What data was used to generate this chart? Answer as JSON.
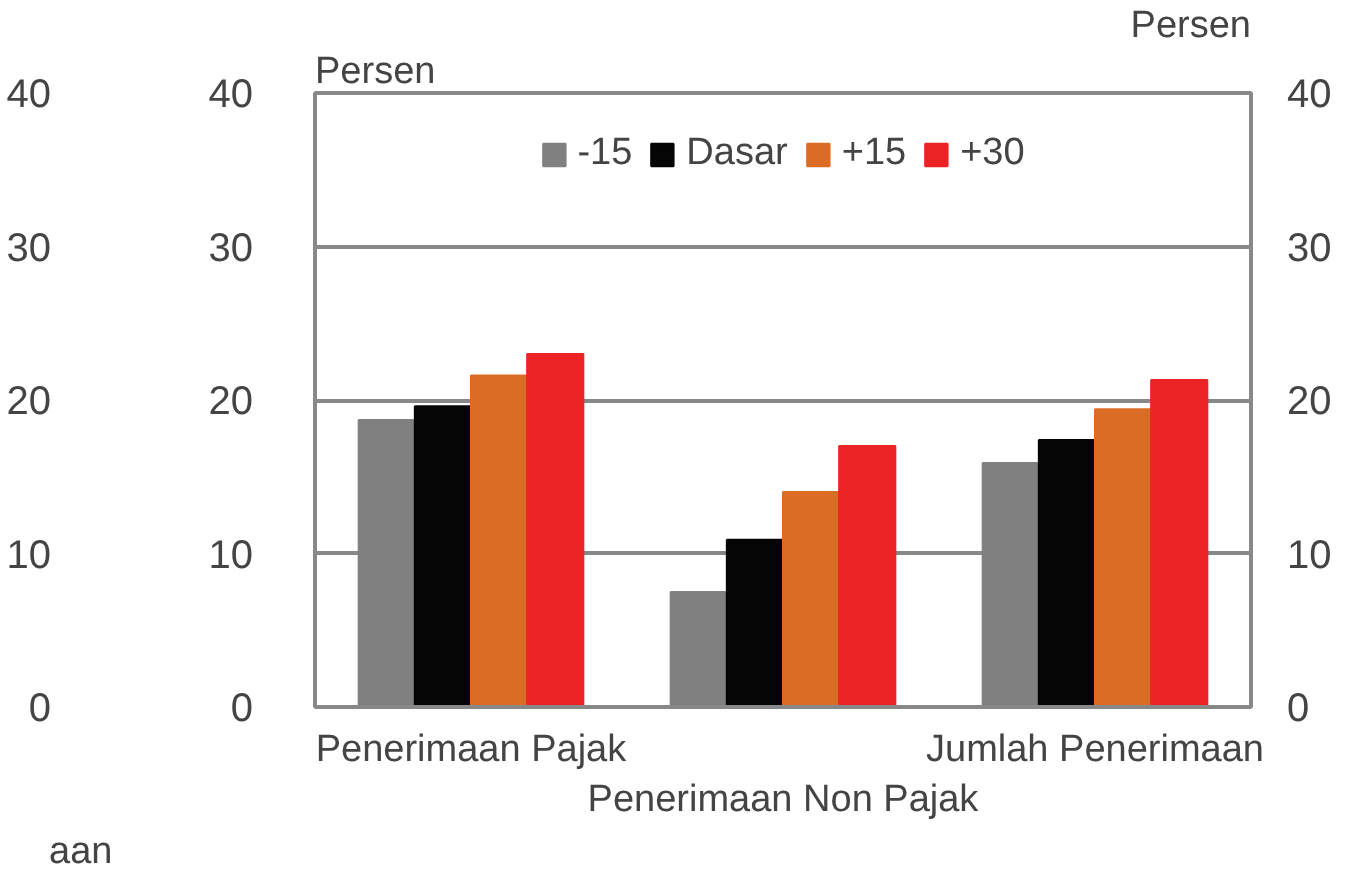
{
  "chart_data": {
    "type": "bar",
    "categories": [
      "Penerimaan Pajak",
      "Penerimaan Non Pajak",
      "Jumlah Penerimaan"
    ],
    "series": [
      {
        "name": "-15",
        "color": "#808080",
        "values": [
          18.7,
          7.5,
          15.9
        ]
      },
      {
        "name": "Dasar",
        "color": "#050505",
        "values": [
          19.6,
          10.9,
          17.4
        ]
      },
      {
        "name": "+15",
        "color": "#db6c26",
        "values": [
          21.6,
          14.0,
          19.4
        ]
      },
      {
        "name": "+30",
        "color": "#ec2325",
        "values": [
          23.0,
          17.0,
          21.3
        ]
      }
    ],
    "ylabel": "Persen",
    "y2label": "Persen",
    "ylim": [
      0,
      40
    ],
    "yticks": [
      0,
      10,
      20,
      30,
      40
    ],
    "y2lim": [
      0,
      40
    ],
    "y2ticks": [
      0,
      10,
      20,
      30,
      40
    ],
    "y3lim": [
      0,
      40
    ],
    "y3ticks": [
      0,
      10,
      20,
      30,
      40
    ],
    "annotations": [
      "aan"
    ],
    "grid": "y",
    "legend": "top"
  }
}
